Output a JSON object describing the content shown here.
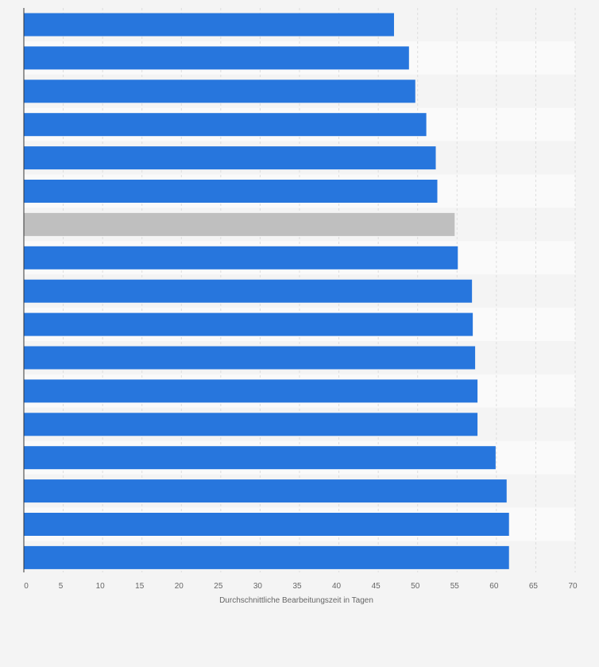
{
  "chart_data": {
    "type": "bar",
    "orientation": "horizontal",
    "xlabel": "Durchschnittliche Bearbeitungszeit in Tagen",
    "ylabel": "",
    "xlim": [
      0,
      70
    ],
    "xticks": [
      0,
      5,
      10,
      15,
      20,
      25,
      30,
      35,
      40,
      45,
      50,
      55,
      60,
      65,
      70
    ],
    "grid": true,
    "legend": "none",
    "colors": {
      "bar": "#2776dd",
      "highlight": "#bfbfbf",
      "row_band": "#f4f4f4",
      "row_band_alt": "#fafafa",
      "grid": "#dddddd",
      "axis": "#333333"
    },
    "values": [
      47.0,
      48.9,
      49.7,
      51.1,
      52.3,
      52.5,
      54.7,
      55.1,
      56.9,
      57.0,
      57.3,
      57.6,
      57.6,
      59.9,
      61.3,
      61.6,
      61.6
    ],
    "highlight_index": 6
  }
}
